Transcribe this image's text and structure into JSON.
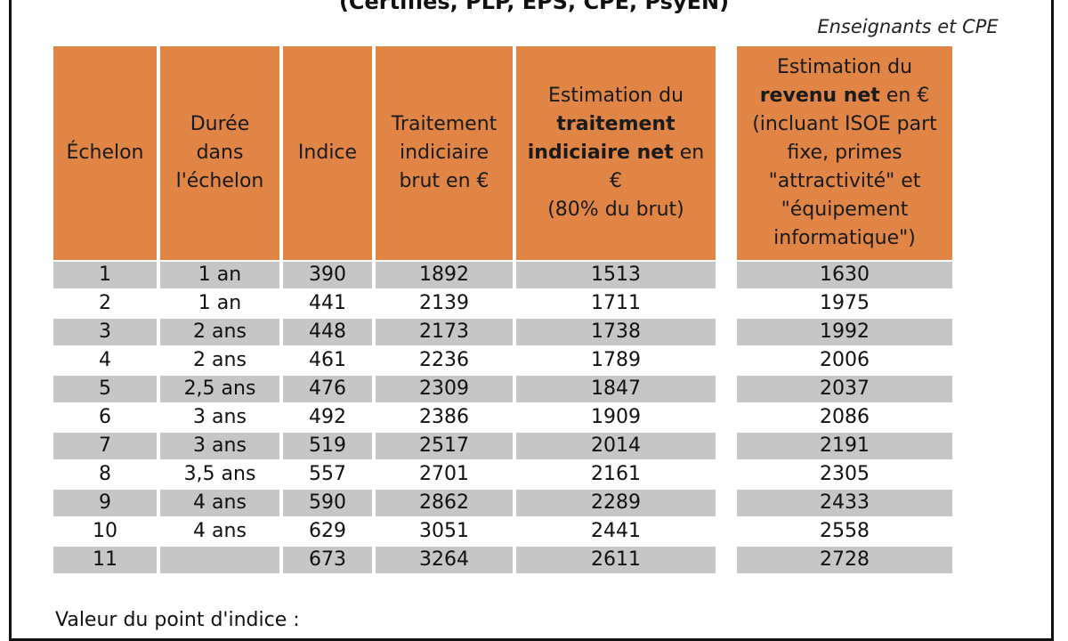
{
  "document": {
    "title": "(Certifiés, PLP, EPS, CPE, PsyEN)",
    "caption": "Enseignants et CPE",
    "headers": {
      "echelon": "Échelon",
      "duree": [
        "Durée",
        "dans",
        "l'échelon"
      ],
      "indice": "Indice",
      "brut": [
        "Traitement",
        "indiciaire",
        "brut en €"
      ],
      "net": {
        "line1": "Estimation du",
        "bold_line": "traitement",
        "bold_part": "indiciaire net",
        "suffix": " en €",
        "line4": "(80% du brut)"
      },
      "revenu": {
        "line1": "Estimation du",
        "bold_part": "revenu net",
        "suffix": " en €",
        "rest": [
          "(incluant ISOE part",
          "fixe, primes",
          "\"attractivité\" et",
          "\"équipement",
          "informatique\")"
        ]
      }
    },
    "rows": [
      {
        "echelon": "1",
        "duree": "1 an",
        "indice": "390",
        "brut": "1892",
        "net": "1513",
        "revenu": "1630"
      },
      {
        "echelon": "2",
        "duree": "1 an",
        "indice": "441",
        "brut": "2139",
        "net": "1711",
        "revenu": "1975"
      },
      {
        "echelon": "3",
        "duree": "2 ans",
        "indice": "448",
        "brut": "2173",
        "net": "1738",
        "revenu": "1992"
      },
      {
        "echelon": "4",
        "duree": "2 ans",
        "indice": "461",
        "brut": "2236",
        "net": "1789",
        "revenu": "2006"
      },
      {
        "echelon": "5",
        "duree": "2,5 ans",
        "indice": "476",
        "brut": "2309",
        "net": "1847",
        "revenu": "2037"
      },
      {
        "echelon": "6",
        "duree": "3 ans",
        "indice": "492",
        "brut": "2386",
        "net": "1909",
        "revenu": "2086"
      },
      {
        "echelon": "7",
        "duree": "3 ans",
        "indice": "519",
        "brut": "2517",
        "net": "2014",
        "revenu": "2191"
      },
      {
        "echelon": "8",
        "duree": "3,5 ans",
        "indice": "557",
        "brut": "2701",
        "net": "2161",
        "revenu": "2305"
      },
      {
        "echelon": "9",
        "duree": "4 ans",
        "indice": "590",
        "brut": "2862",
        "net": "2289",
        "revenu": "2433"
      },
      {
        "echelon": "10",
        "duree": "4 ans",
        "indice": "629",
        "brut": "3051",
        "net": "2441",
        "revenu": "2558"
      },
      {
        "echelon": "11",
        "duree": "",
        "indice": "673",
        "brut": "3264",
        "net": "2611",
        "revenu": "2728"
      }
    ],
    "footnote": "Valeur du point d'indice :"
  },
  "colors": {
    "header_bg": "#e08545",
    "row_shade": "#c6c6c6",
    "border": "#111111"
  }
}
